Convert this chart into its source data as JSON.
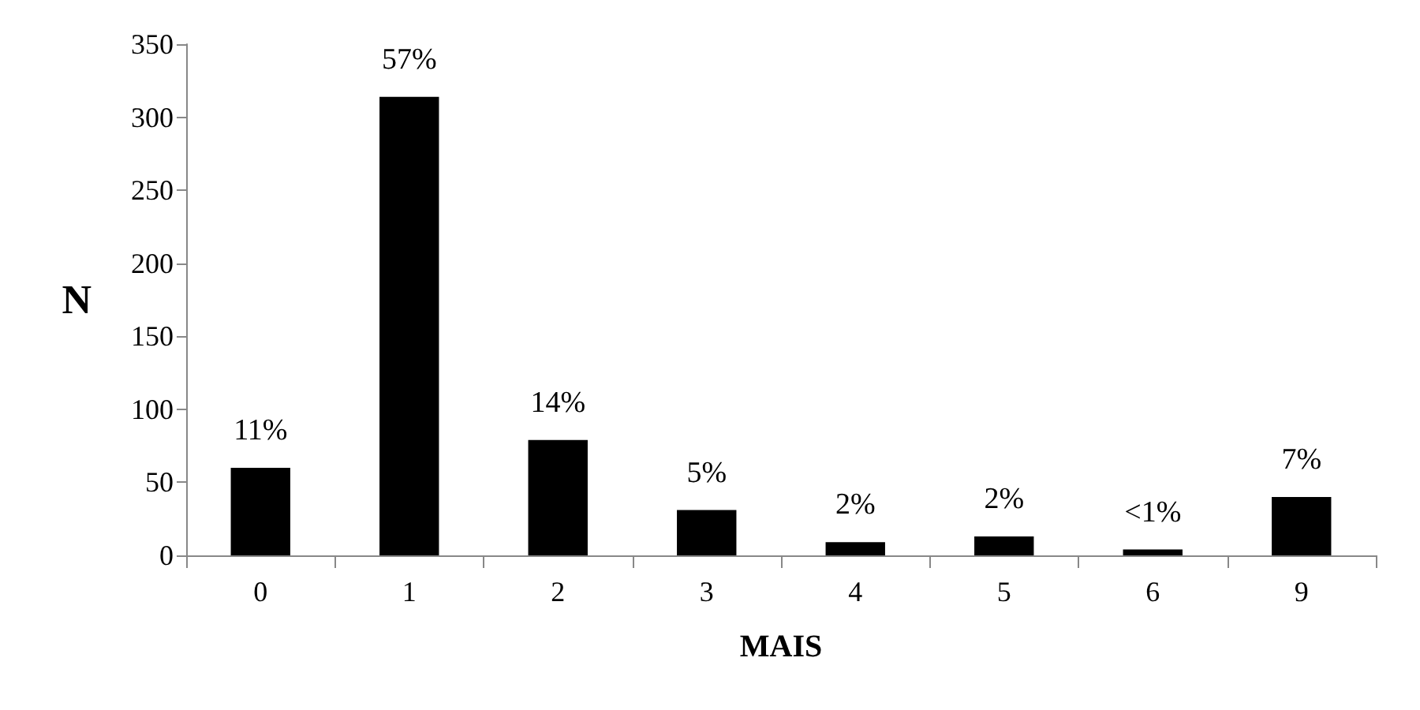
{
  "chart_data": {
    "type": "bar",
    "xlabel": "MAIS",
    "ylabel": "N",
    "categories": [
      "0",
      "1",
      "2",
      "3",
      "4",
      "5",
      "6",
      "9"
    ],
    "values": [
      60,
      314,
      79,
      31,
      9,
      13,
      4,
      40
    ],
    "annotations": [
      {
        "text": "11%",
        "x": "0",
        "y": 60
      },
      {
        "text": "57%",
        "x": "1",
        "y": 314
      },
      {
        "text": "14%",
        "x": "2",
        "y": 79
      },
      {
        "text": "5%",
        "x": "3",
        "y": 31
      },
      {
        "text": "2%",
        "x": "4",
        "y": 9
      },
      {
        "text": "2%",
        "x": "5",
        "y": 13
      },
      {
        "text": "<1%",
        "x": "6",
        "y": 4
      },
      {
        "text": "7%",
        "x": "9",
        "y": 40
      }
    ],
    "color": "#000000",
    "ylim": [
      0,
      350
    ],
    "yticks": [
      0,
      50,
      100,
      150,
      200,
      250,
      300,
      350
    ],
    "grid": false
  }
}
